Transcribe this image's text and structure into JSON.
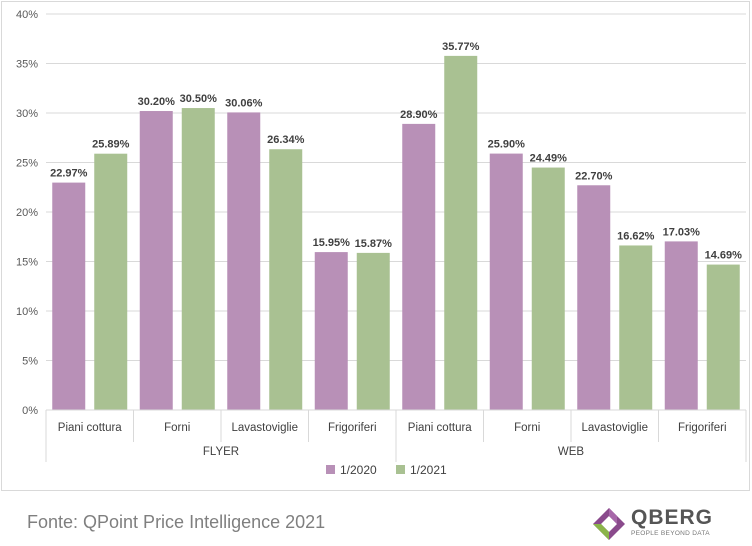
{
  "chart_data": {
    "type": "bar",
    "groups": [
      {
        "name": "FLYER",
        "categories": [
          "Piani cottura",
          "Forni",
          "Lavastoviglie",
          "Frigoriferi"
        ]
      },
      {
        "name": "WEB",
        "categories": [
          "Piani cottura",
          "Forni",
          "Lavastoviglie",
          "Frigoriferi"
        ]
      }
    ],
    "series": [
      {
        "name": "1/2020",
        "color": "#b890b7",
        "values": [
          22.97,
          30.2,
          30.06,
          15.95,
          28.9,
          25.9,
          22.7,
          17.03
        ],
        "labels": [
          "22.97%",
          "30.20%",
          "30.06%",
          "15.95%",
          "28.90%",
          "25.90%",
          "22.70%",
          "17.03%"
        ]
      },
      {
        "name": "1/2021",
        "color": "#a9c192",
        "values": [
          25.89,
          30.5,
          26.34,
          15.87,
          35.77,
          24.49,
          16.62,
          14.69
        ],
        "labels": [
          "25.89%",
          "30.50%",
          "26.34%",
          "15.87%",
          "35.77%",
          "24.49%",
          "16.62%",
          "14.69%"
        ]
      }
    ],
    "ylim": [
      0,
      40
    ],
    "yticks": [
      "0%",
      "5%",
      "10%",
      "15%",
      "20%",
      "25%",
      "30%",
      "35%",
      "40%"
    ],
    "grid": true,
    "legend_position": "bottom"
  },
  "footer": {
    "source": "Fonte: QPoint Price Intelligence 2021",
    "logo_name": "QBERG",
    "logo_tagline": "PEOPLE BEYOND DATA"
  }
}
